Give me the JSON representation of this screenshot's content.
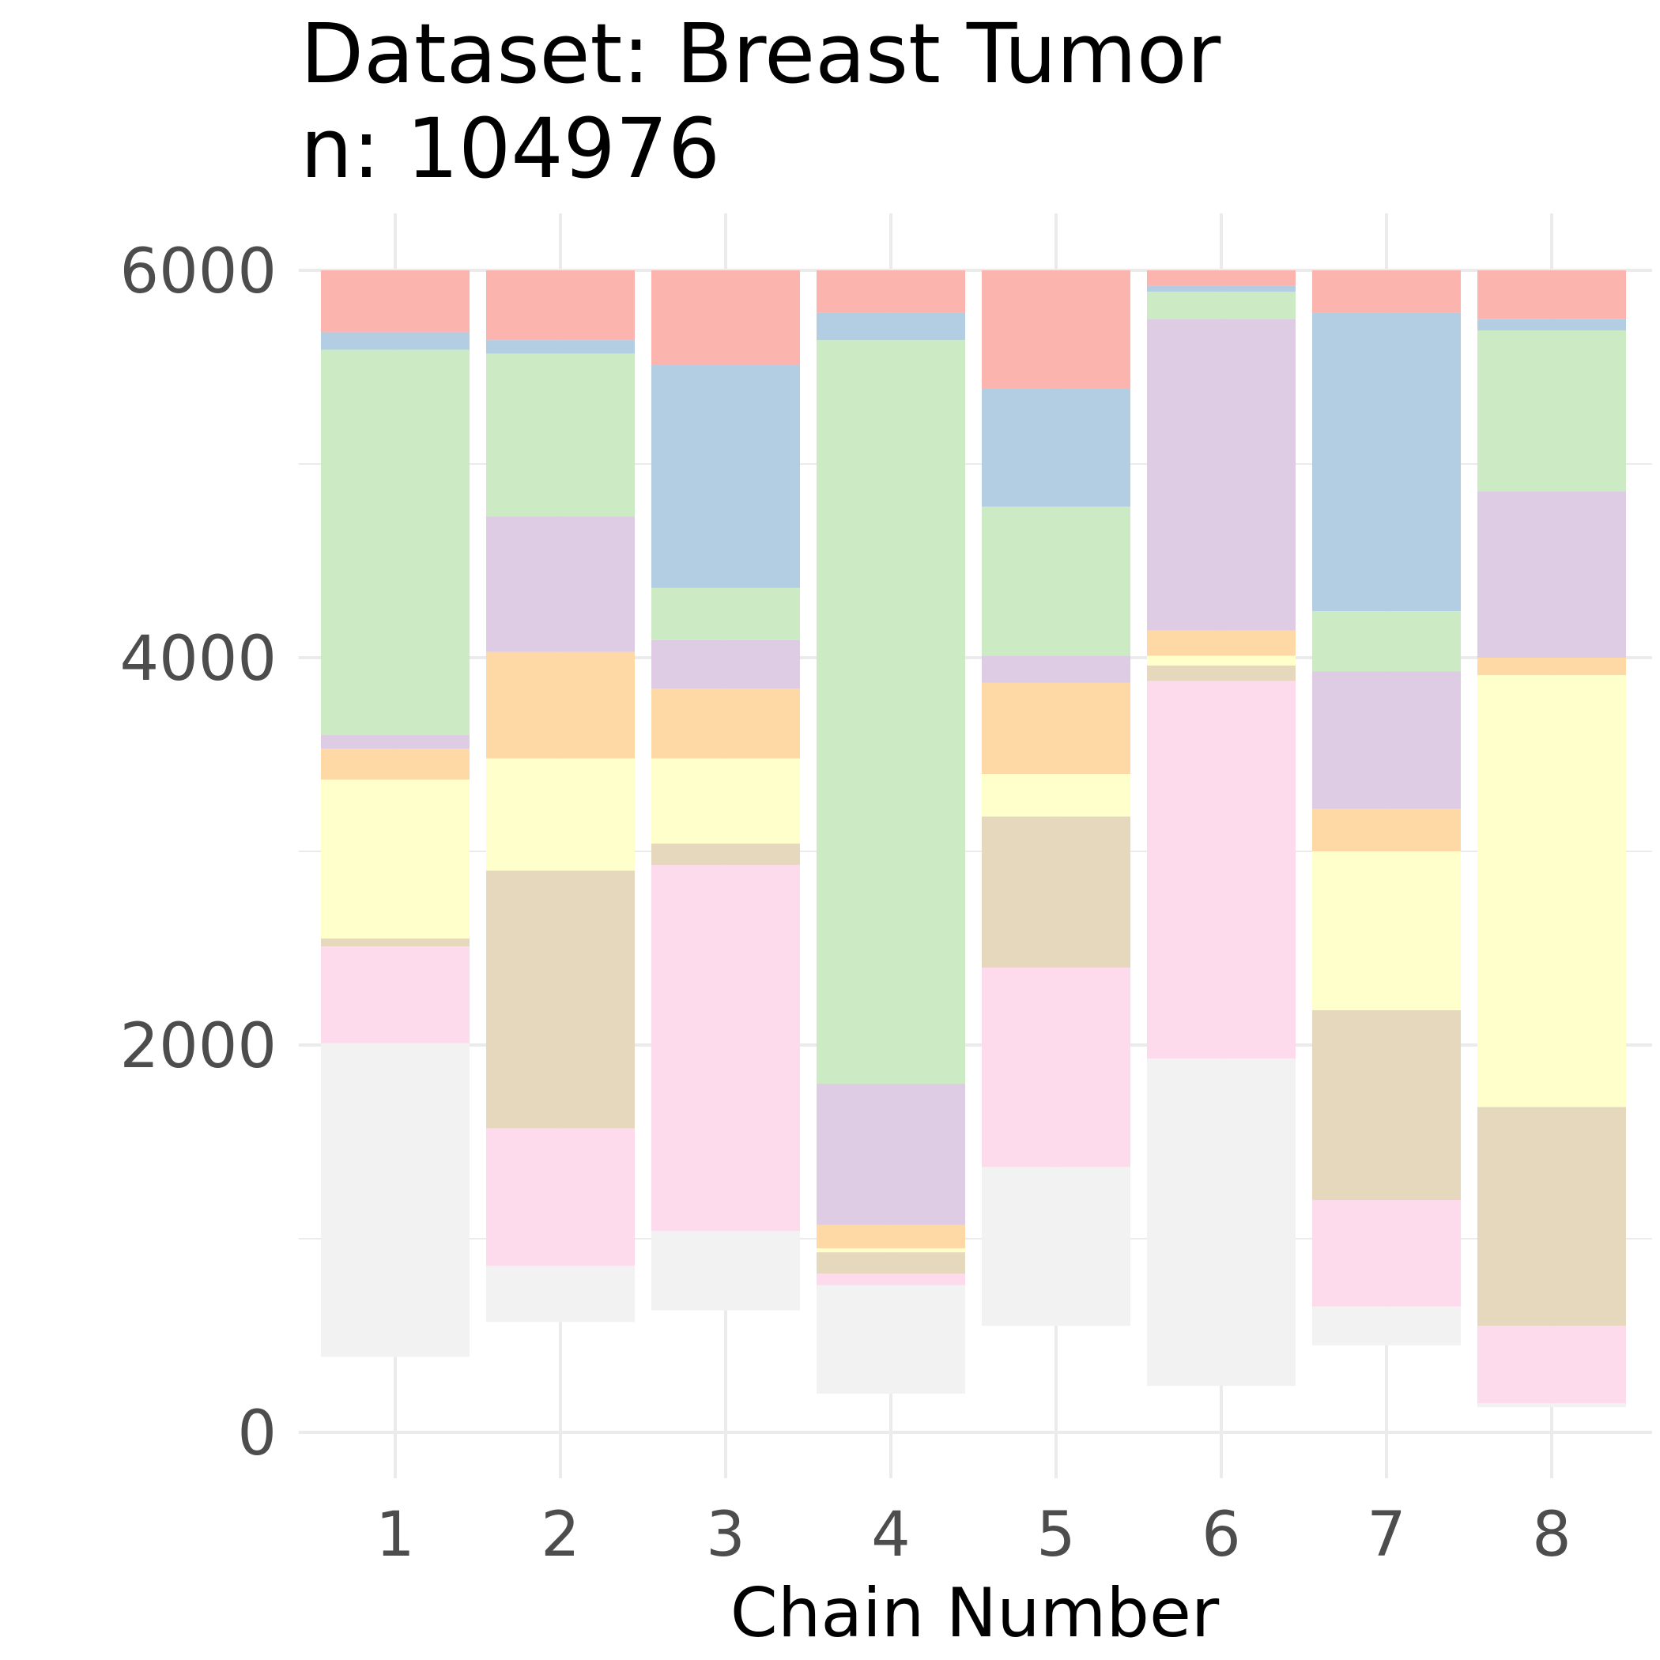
{
  "chart_data": {
    "type": "bar",
    "title_line1": "Dataset: Breast Tumor",
    "title_line2": "n: 104976",
    "xlabel": "Chain Number",
    "ylabel": "",
    "ylim": [
      0,
      6000
    ],
    "y_ticks": [
      "0",
      "2000",
      "4000",
      "6000"
    ],
    "categories": [
      "1",
      "2",
      "3",
      "4",
      "5",
      "6",
      "7",
      "8"
    ],
    "grid": true,
    "legend": "none",
    "note": "floating stacked segments; each segment listed bottom-to-top as [ystart, yend] in data units",
    "segment_colors": {
      "grey": "#f2f2f2",
      "pink": "#fddaec",
      "tan": "#e5d8bd",
      "yellow": "#ffffcc",
      "orange": "#fed9a6",
      "purple": "#decbe4",
      "green": "#ccebc5",
      "blue": "#b3cde3",
      "red": "#fbb4ae"
    },
    "bars": [
      {
        "category": "1",
        "segments": [
          {
            "color": "grey",
            "range": [
              390,
              2010
            ]
          },
          {
            "color": "pink",
            "range": [
              2010,
              2510
            ]
          },
          {
            "color": "tan",
            "range": [
              2510,
              2550
            ]
          },
          {
            "color": "yellow",
            "range": [
              2550,
              3370
            ]
          },
          {
            "color": "orange",
            "range": [
              3370,
              3530
            ]
          },
          {
            "color": "purple",
            "range": [
              3530,
              3600
            ]
          },
          {
            "color": "green",
            "range": [
              3600,
              5590
            ]
          },
          {
            "color": "blue",
            "range": [
              5590,
              5680
            ]
          },
          {
            "color": "red",
            "range": [
              5680,
              6000
            ]
          }
        ]
      },
      {
        "category": "2",
        "segments": [
          {
            "color": "grey",
            "range": [
              570,
              860
            ]
          },
          {
            "color": "pink",
            "range": [
              860,
              1570
            ]
          },
          {
            "color": "tan",
            "range": [
              1570,
              2900
            ]
          },
          {
            "color": "yellow",
            "range": [
              2900,
              3480
            ]
          },
          {
            "color": "orange",
            "range": [
              3480,
              4030
            ]
          },
          {
            "color": "purple",
            "range": [
              4030,
              4730
            ]
          },
          {
            "color": "green",
            "range": [
              4730,
              5570
            ]
          },
          {
            "color": "blue",
            "range": [
              5570,
              5640
            ]
          },
          {
            "color": "red",
            "range": [
              5640,
              6000
            ]
          }
        ]
      },
      {
        "category": "3",
        "segments": [
          {
            "color": "grey",
            "range": [
              630,
              1040
            ]
          },
          {
            "color": "pink",
            "range": [
              1040,
              2930
            ]
          },
          {
            "color": "tan",
            "range": [
              2930,
              3040
            ]
          },
          {
            "color": "yellow",
            "range": [
              3040,
              3480
            ]
          },
          {
            "color": "orange",
            "range": [
              3480,
              3840
            ]
          },
          {
            "color": "purple",
            "range": [
              3840,
              4090
            ]
          },
          {
            "color": "green",
            "range": [
              4090,
              4360
            ]
          },
          {
            "color": "blue",
            "range": [
              4360,
              5510
            ]
          },
          {
            "color": "red",
            "range": [
              5510,
              6000
            ]
          }
        ]
      },
      {
        "category": "4",
        "segments": [
          {
            "color": "grey",
            "range": [
              200,
              760
            ]
          },
          {
            "color": "pink",
            "range": [
              760,
              820
            ]
          },
          {
            "color": "tan",
            "range": [
              820,
              930
            ]
          },
          {
            "color": "yellow",
            "range": [
              930,
              950
            ]
          },
          {
            "color": "orange",
            "range": [
              950,
              1070
            ]
          },
          {
            "color": "purple",
            "range": [
              1070,
              1800
            ]
          },
          {
            "color": "green",
            "range": [
              1800,
              5640
            ]
          },
          {
            "color": "blue",
            "range": [
              5640,
              5780
            ]
          },
          {
            "color": "red",
            "range": [
              5780,
              6000
            ]
          }
        ]
      },
      {
        "category": "5",
        "segments": [
          {
            "color": "grey",
            "range": [
              550,
              1370
            ]
          },
          {
            "color": "pink",
            "range": [
              1370,
              2400
            ]
          },
          {
            "color": "tan",
            "range": [
              2400,
              3180
            ]
          },
          {
            "color": "yellow",
            "range": [
              3180,
              3400
            ]
          },
          {
            "color": "orange",
            "range": [
              3400,
              3870
            ]
          },
          {
            "color": "purple",
            "range": [
              3870,
              4010
            ]
          },
          {
            "color": "green",
            "range": [
              4010,
              4780
            ]
          },
          {
            "color": "blue",
            "range": [
              4780,
              5390
            ]
          },
          {
            "color": "red",
            "range": [
              5390,
              6000
            ]
          }
        ]
      },
      {
        "category": "6",
        "segments": [
          {
            "color": "grey",
            "range": [
              240,
              1930
            ]
          },
          {
            "color": "pink",
            "range": [
              1930,
              3880
            ]
          },
          {
            "color": "tan",
            "range": [
              3880,
              3960
            ]
          },
          {
            "color": "yellow",
            "range": [
              3960,
              4010
            ]
          },
          {
            "color": "orange",
            "range": [
              4010,
              4140
            ]
          },
          {
            "color": "purple",
            "range": [
              4140,
              5750
            ]
          },
          {
            "color": "green",
            "range": [
              5750,
              5890
            ]
          },
          {
            "color": "blue",
            "range": [
              5890,
              5920
            ]
          },
          {
            "color": "red",
            "range": [
              5920,
              6000
            ]
          }
        ]
      },
      {
        "category": "7",
        "segments": [
          {
            "color": "grey",
            "range": [
              450,
              650
            ]
          },
          {
            "color": "pink",
            "range": [
              650,
              1200
            ]
          },
          {
            "color": "tan",
            "range": [
              1200,
              2180
            ]
          },
          {
            "color": "yellow",
            "range": [
              2180,
              3000
            ]
          },
          {
            "color": "orange",
            "range": [
              3000,
              3220
            ]
          },
          {
            "color": "purple",
            "range": [
              3220,
              3930
            ]
          },
          {
            "color": "green",
            "range": [
              3930,
              4240
            ]
          },
          {
            "color": "blue",
            "range": [
              4240,
              5780
            ]
          },
          {
            "color": "red",
            "range": [
              5780,
              6000
            ]
          }
        ]
      },
      {
        "category": "8",
        "segments": [
          {
            "color": "grey",
            "range": [
              130,
              150
            ]
          },
          {
            "color": "pink",
            "range": [
              150,
              550
            ]
          },
          {
            "color": "tan",
            "range": [
              550,
              1680
            ]
          },
          {
            "color": "yellow",
            "range": [
              1680,
              3910
            ]
          },
          {
            "color": "orange",
            "range": [
              3910,
              4000
            ]
          },
          {
            "color": "purple",
            "range": [
              4000,
              4860
            ]
          },
          {
            "color": "green",
            "range": [
              4860,
              5690
            ]
          },
          {
            "color": "blue",
            "range": [
              5690,
              5750
            ]
          },
          {
            "color": "red",
            "range": [
              5750,
              6000
            ]
          }
        ]
      }
    ]
  }
}
